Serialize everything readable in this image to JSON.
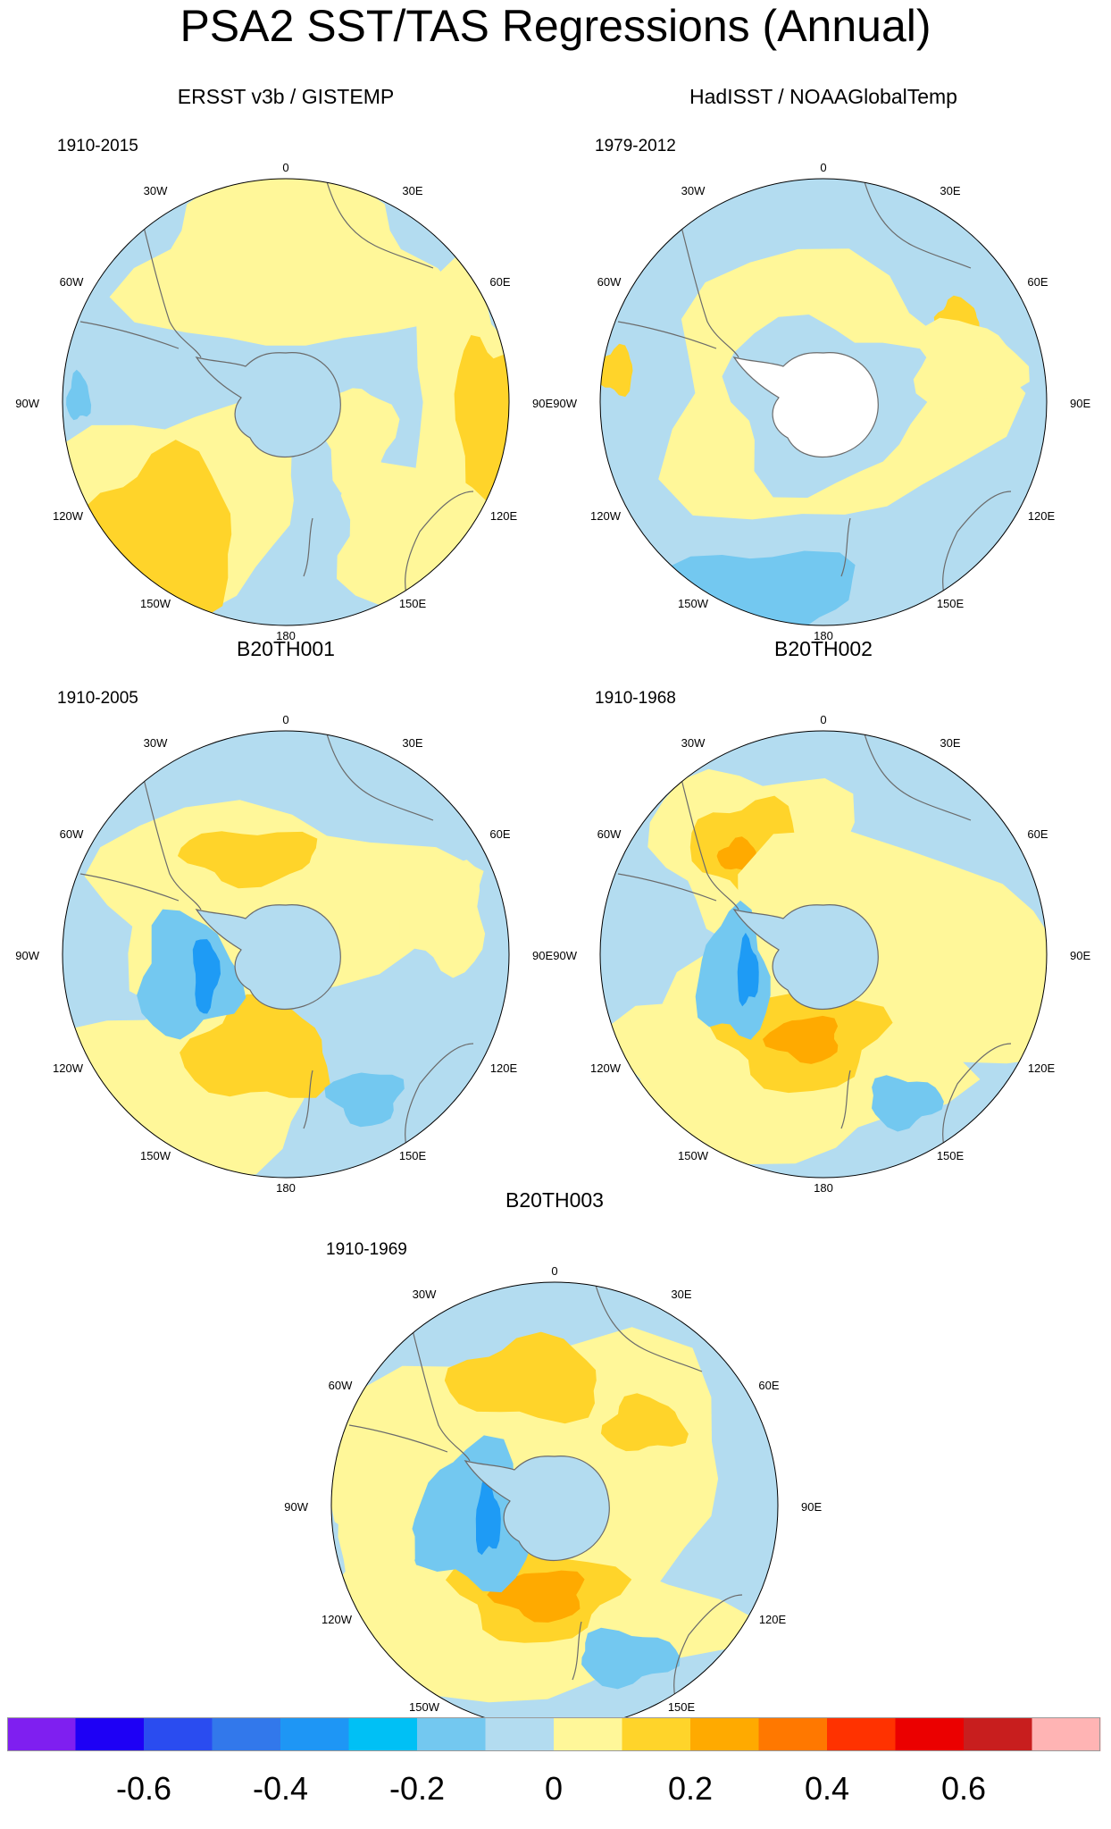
{
  "title": "PSA2 SST/TAS Regressions (Annual)",
  "lon_labels": [
    "0",
    "30E",
    "60E",
    "90E",
    "120E",
    "150E",
    "180",
    "150W",
    "120W",
    "90W",
    "60W",
    "30W"
  ],
  "colors": {
    "ocean_blue": "#b3dcf0",
    "light_yellow": "#fff799",
    "gold": "#ffd42a",
    "orange": "#ffaa00",
    "mid_blue": "#73c8f0",
    "deep_blue": "#1e9bf5",
    "land_white": "#ffffff",
    "coast": "#6b6b6b"
  },
  "panels": [
    {
      "title": "ERSST v3b / GISTEMP",
      "period": "1910-2015",
      "antarctica_missing": false
    },
    {
      "title": "HadISST / NOAAGlobalTemp",
      "period": "1979-2012",
      "antarctica_missing": true
    },
    {
      "title": "B20TH001",
      "period": "1910-2005",
      "antarctica_missing": false
    },
    {
      "title": "B20TH002",
      "period": "1910-1968",
      "antarctica_missing": false
    },
    {
      "title": "B20TH003",
      "period": "1910-1969",
      "antarctica_missing": false
    }
  ],
  "colorbar": {
    "colors": [
      "#7f1ff0",
      "#1e00f5",
      "#2a4cf0",
      "#3278eb",
      "#1e96f5",
      "#00c0f5",
      "#73c8f0",
      "#b3dcf0",
      "#fff799",
      "#ffd42a",
      "#ffaa00",
      "#ff7800",
      "#ff3200",
      "#eb0000",
      "#c81e1e",
      "#ffb4b4"
    ],
    "tick_labels": [
      "-0.6",
      "-0.4",
      "-0.2",
      "0",
      "0.2",
      "0.4",
      "0.6"
    ]
  }
}
